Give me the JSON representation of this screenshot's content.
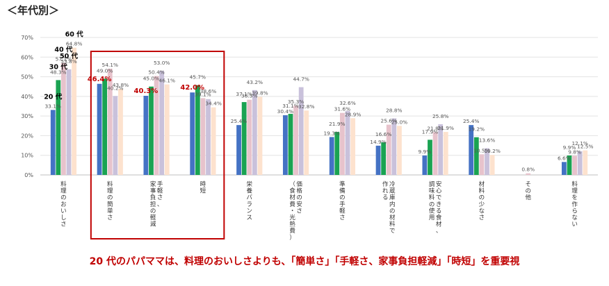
{
  "header": {
    "title": "＜年代別＞"
  },
  "caption": "20 代のパパママは、料理のおいしさよりも、「簡単さ」「手軽さ、家事負担軽減」「時短」を重要視",
  "chart_data": {
    "type": "bar",
    "ylim": [
      0,
      70
    ],
    "yticks": [
      "0%",
      "10%",
      "20%",
      "30%",
      "40%",
      "50%",
      "60%",
      "70%"
    ],
    "grid": true,
    "categories": [
      [
        "料理のおいしさ"
      ],
      [
        "料理の簡単さ"
      ],
      [
        "手軽さ、",
        "家事負担の軽減"
      ],
      [
        "時短"
      ],
      [
        "栄養バランス"
      ],
      [
        "価格の安さ",
        "（食材費・光熱費）"
      ],
      [
        "準備の手軽さ"
      ],
      [
        "冷蔵庫内の材料で",
        "作れる"
      ],
      [
        "安心できる食材、",
        "調味料の使用"
      ],
      [
        "材料の少なさ"
      ],
      [
        "その他"
      ],
      [
        "料理を作らない"
      ]
    ],
    "series": [
      {
        "name": "20 代",
        "color": "#4472c4",
        "values": [
          33.1,
          46.4,
          40.3,
          42.0,
          25.4,
          30.4,
          19.3,
          14.9,
          9.9,
          25.4,
          0,
          6.6
        ]
      },
      {
        "name": "30 代",
        "color": "#1aa352",
        "values": [
          48.3,
          49.0,
          45.0,
          45.7,
          37.1,
          31.1,
          21.9,
          16.6,
          17.9,
          19.2,
          0,
          9.9
        ]
      },
      {
        "name": "40 代",
        "color": "#e7c3cc",
        "values": [
          57.1,
          54.1,
          50.4,
          39.1,
          38.3,
          35.3,
          31.6,
          25.6,
          21.8,
          10.5,
          0.8,
          9.8
        ]
      },
      {
        "name": "50 代",
        "color": "#c9c1db",
        "values": [
          53.8,
          40.2,
          53.0,
          38.6,
          43.2,
          44.7,
          32.6,
          28.8,
          25.8,
          13.6,
          0,
          12.1
        ]
      },
      {
        "name": "60 代",
        "color": "#fde2ce",
        "values": [
          64.8,
          43.8,
          46.1,
          34.4,
          39.8,
          32.8,
          28.9,
          25.0,
          21.9,
          10.2,
          0,
          12.5
        ]
      }
    ],
    "label_texts": [
      [
        "33.1%",
        "48.3%",
        "57.1%",
        "53.8%",
        "64.8%"
      ],
      [
        "46.4%",
        "49.0%",
        "54.1%",
        "40.2%",
        "43.8%"
      ],
      [
        "40.3%",
        "45.0%",
        "50.4%",
        "53.0%",
        "46.1%"
      ],
      [
        "42.0%",
        "45.7%",
        "39.1%",
        "38.6%",
        "34.4%"
      ],
      [
        "25.4%",
        "37.1%",
        "38.3%",
        "43.2%",
        "39.8%"
      ],
      [
        "30.4%",
        "31.1%",
        "35.3%",
        "44.7%",
        "32.8%"
      ],
      [
        "19.3%",
        "21.9%",
        "31.6%",
        "32.6%",
        "28.9%"
      ],
      [
        "14.9%",
        "16.6%",
        "25.6%",
        "28.8%",
        "25.0%"
      ],
      [
        "9.9%",
        "17.9%",
        "21.8%",
        "25.8%",
        "21.9%"
      ],
      [
        "25.4%",
        "19.2%",
        "10.5%",
        "13.6%",
        "10.2%"
      ],
      [
        "",
        "",
        "0.8%",
        "",
        ""
      ],
      [
        "6.6%",
        "9.9%",
        "9.8%",
        "12.1%",
        "12.5%"
      ]
    ],
    "highlight": {
      "series": "20 代",
      "categories": [
        1,
        2,
        3
      ],
      "color": "#c00000"
    }
  }
}
